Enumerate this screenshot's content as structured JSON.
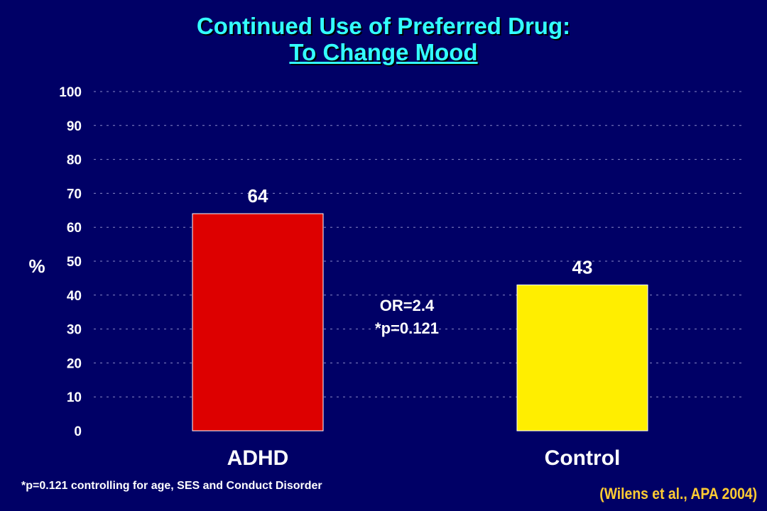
{
  "title": {
    "line1": "Continued Use of Preferred Drug:",
    "line2": "To Change Mood"
  },
  "chart_data": {
    "type": "bar",
    "categories": [
      "ADHD",
      "Control"
    ],
    "values": [
      64,
      43
    ],
    "colors": [
      "#dd0000",
      "#ffee00"
    ],
    "ylabel": "%",
    "ylim": [
      0,
      100
    ],
    "yticks": [
      0,
      10,
      20,
      30,
      40,
      50,
      60,
      70,
      80,
      90,
      100
    ],
    "grid": true,
    "annotation": [
      "OR=2.4",
      "*p=0.121"
    ]
  },
  "footnote": "*p=0.121 controlling for age, SES and Conduct Disorder",
  "citation": "(Wilens et al., APA 2004)"
}
